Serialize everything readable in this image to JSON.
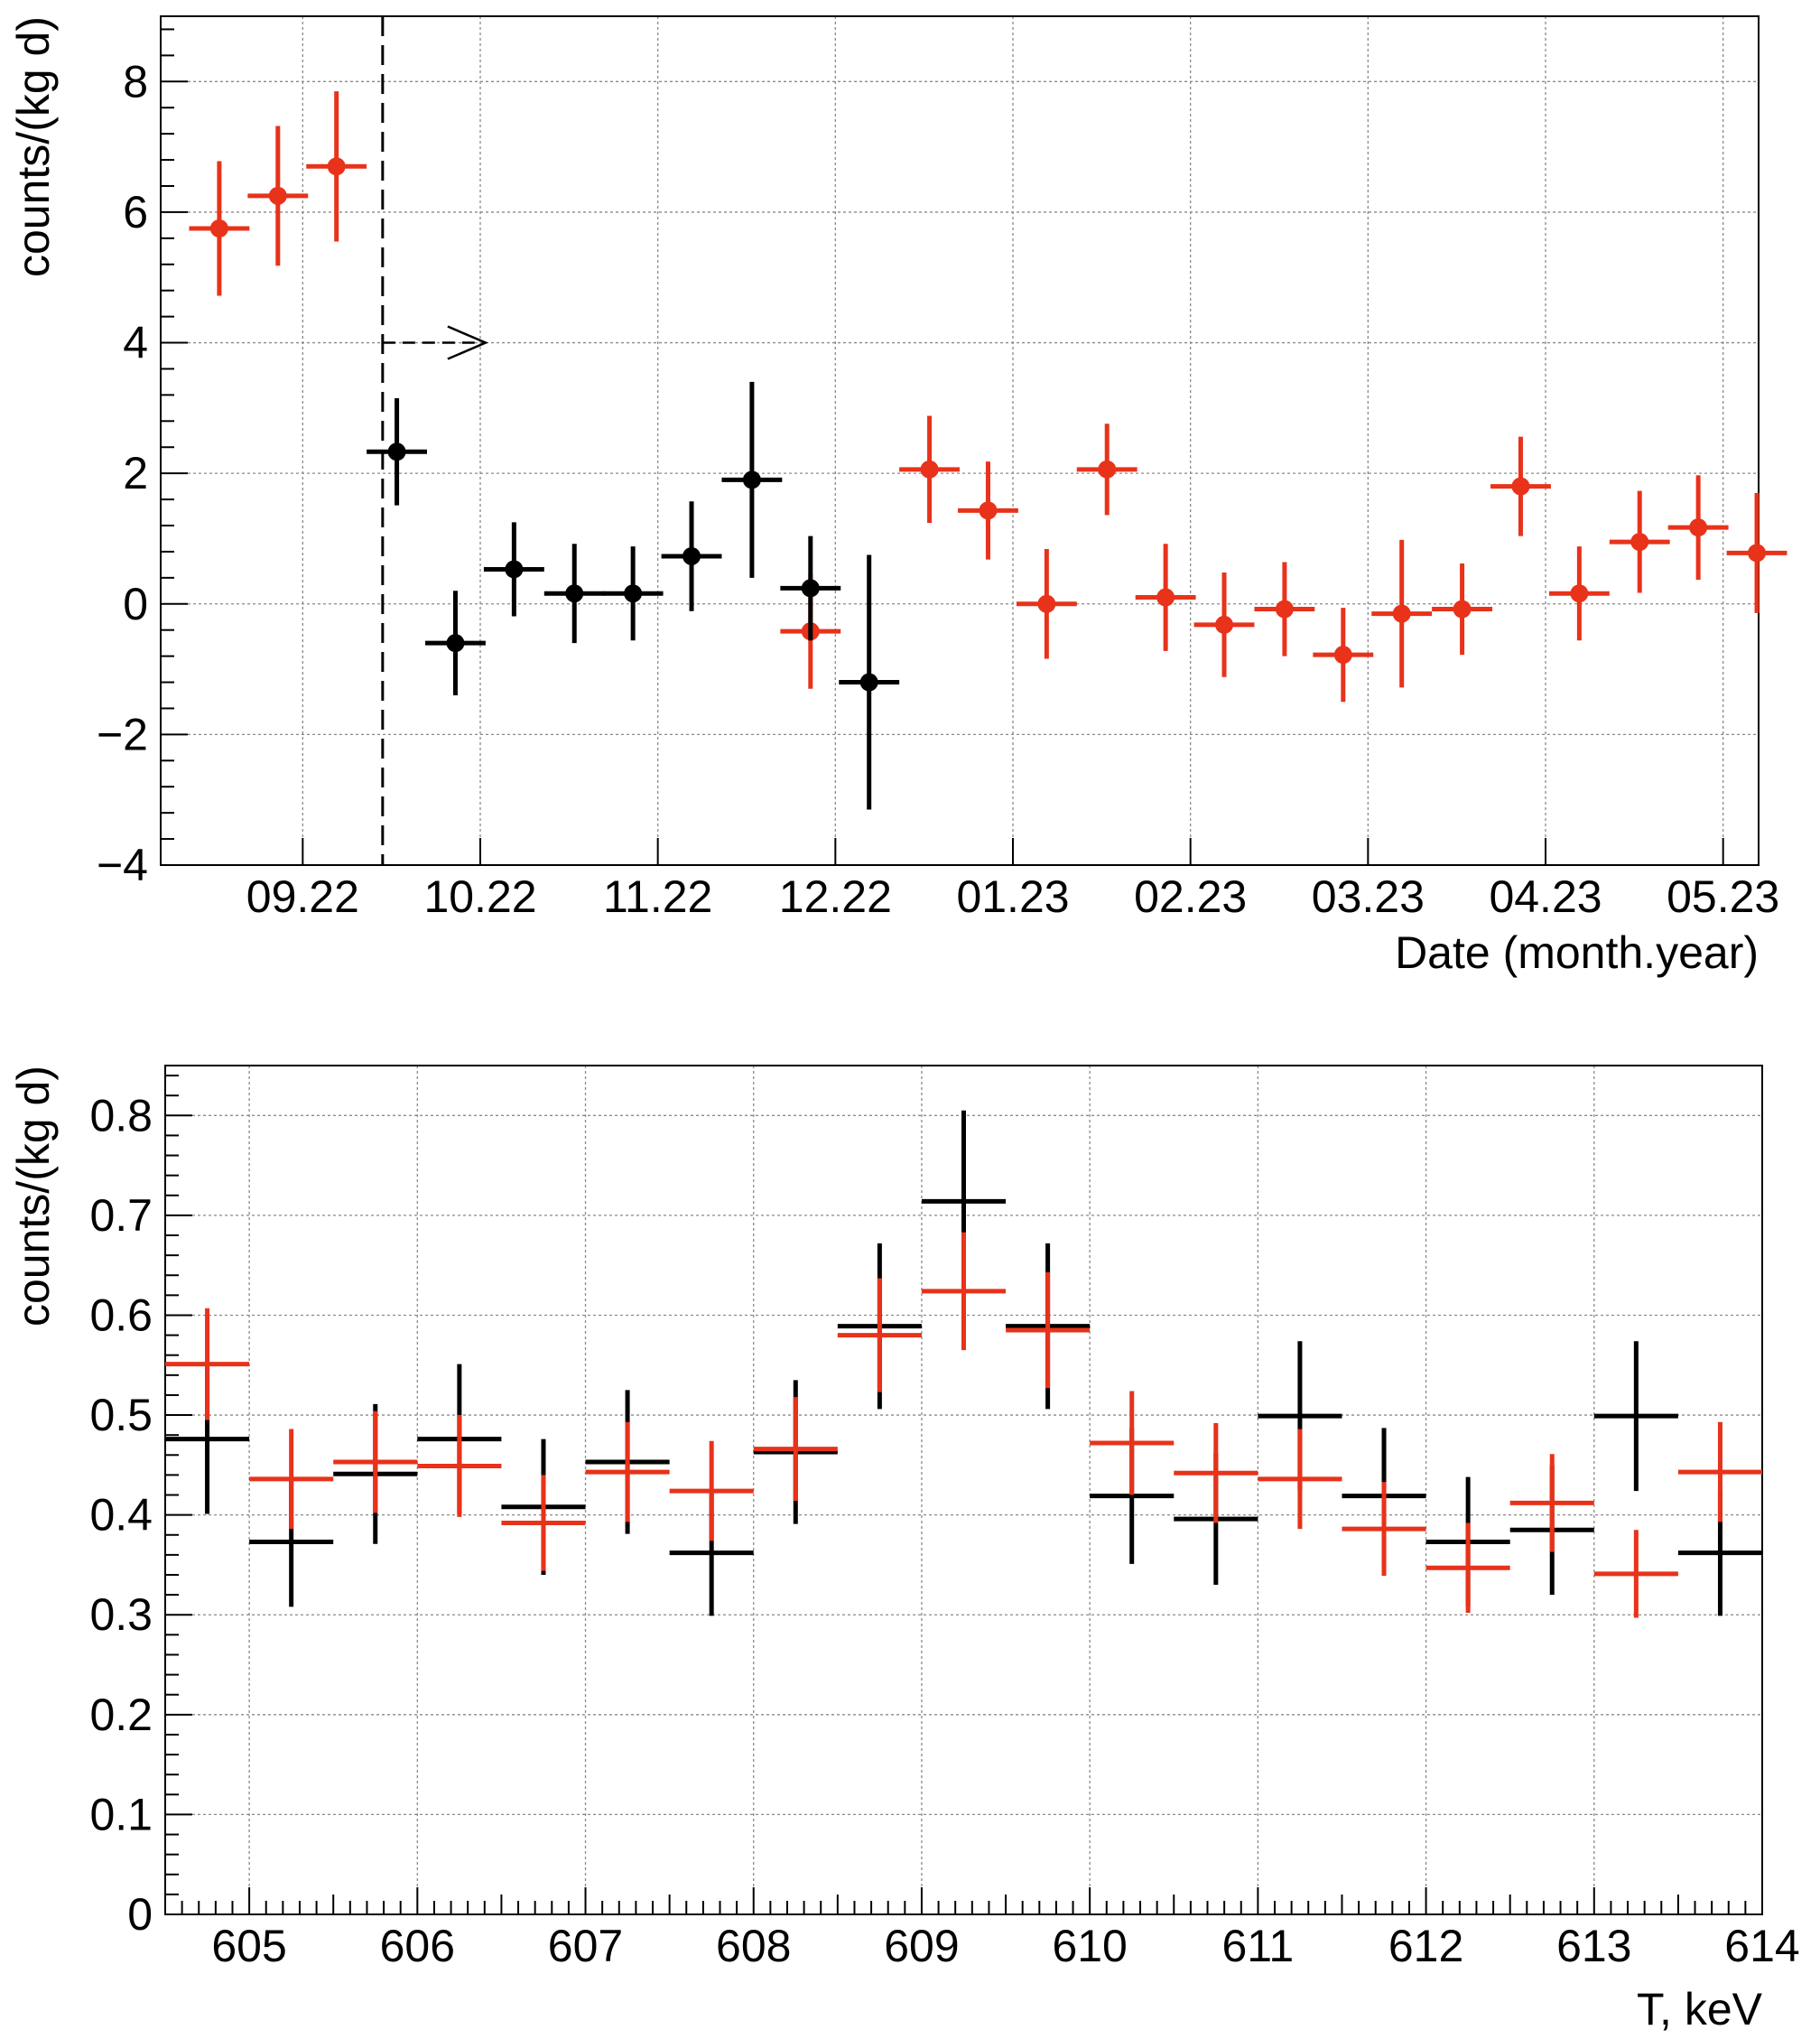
{
  "colors": {
    "red_series": "#e8321a",
    "black_series": "#000000",
    "grid": "#8a8a8a"
  },
  "chart_data": [
    {
      "type": "scatter",
      "subtype": "errorbar",
      "title": "",
      "xlabel": "Date (month.year)",
      "ylabel": "counts/(kg d)",
      "xlim": [
        0.2,
        9.2
      ],
      "ylim": [
        -4,
        9
      ],
      "xtick_labels": [
        {
          "x": 1,
          "label": "09.22"
        },
        {
          "x": 2,
          "label": "10.22"
        },
        {
          "x": 3,
          "label": "11.22"
        },
        {
          "x": 4,
          "label": "12.22"
        },
        {
          "x": 5,
          "label": "01.23"
        },
        {
          "x": 6,
          "label": "02.23"
        },
        {
          "x": 7,
          "label": "03.23"
        },
        {
          "x": 8,
          "label": "04.23"
        },
        {
          "x": 9,
          "label": "05.23"
        }
      ],
      "yticks": [
        -4,
        -2,
        0,
        2,
        4,
        6,
        8
      ],
      "grid": true,
      "marker": "circle",
      "xerr": 0.17,
      "vline": {
        "x": 1.45,
        "style": "dashed"
      },
      "arrow": {
        "x_from": 1.45,
        "x_to": 2.03,
        "y": 4,
        "style": "dashed",
        "direction": "right"
      },
      "series": [
        {
          "color": "#e8321a",
          "points": [
            {
              "x": 0.53,
              "y": 5.75,
              "err": 1.03
            },
            {
              "x": 0.86,
              "y": 6.25,
              "err": 1.07
            },
            {
              "x": 1.19,
              "y": 6.7,
              "err": 1.15
            },
            {
              "x": 3.86,
              "y": -0.42,
              "err": 0.88
            },
            {
              "x": 4.53,
              "y": 2.06,
              "err": 0.82
            },
            {
              "x": 4.86,
              "y": 1.43,
              "err": 0.75
            },
            {
              "x": 5.19,
              "y": 0.0,
              "err": 0.84
            },
            {
              "x": 5.53,
              "y": 2.06,
              "err": 0.7
            },
            {
              "x": 5.86,
              "y": 0.1,
              "err": 0.82
            },
            {
              "x": 6.19,
              "y": -0.32,
              "err": 0.8
            },
            {
              "x": 6.53,
              "y": -0.08,
              "err": 0.72
            },
            {
              "x": 6.86,
              "y": -0.78,
              "err": 0.72
            },
            {
              "x": 7.19,
              "y": -0.15,
              "err": 1.13
            },
            {
              "x": 7.53,
              "y": -0.08,
              "err": 0.7
            },
            {
              "x": 7.86,
              "y": 1.8,
              "err": 0.76
            },
            {
              "x": 8.19,
              "y": 0.16,
              "err": 0.72
            },
            {
              "x": 8.53,
              "y": 0.95,
              "err": 0.78
            },
            {
              "x": 8.86,
              "y": 1.17,
              "err": 0.8
            },
            {
              "x": 9.19,
              "y": 0.78,
              "err": 0.92
            }
          ]
        },
        {
          "color": "#000000",
          "points": [
            {
              "x": 1.53,
              "y": 2.33,
              "err": 0.82
            },
            {
              "x": 1.86,
              "y": -0.6,
              "err": 0.8
            },
            {
              "x": 2.19,
              "y": 0.53,
              "err": 0.72
            },
            {
              "x": 2.53,
              "y": 0.16,
              "err": 0.76
            },
            {
              "x": 2.86,
              "y": 0.16,
              "err": 0.72
            },
            {
              "x": 3.19,
              "y": 0.73,
              "err": 0.84
            },
            {
              "x": 3.53,
              "y": 1.9,
              "err": 1.5
            },
            {
              "x": 3.86,
              "y": 0.24,
              "err": 0.8
            },
            {
              "x": 4.19,
              "y": -1.2,
              "err": 1.95
            }
          ]
        }
      ]
    },
    {
      "type": "scatter",
      "subtype": "errorbar",
      "title": "",
      "xlabel": "T, keV",
      "ylabel": "counts/(kg d)",
      "xlim": [
        604.5,
        614
      ],
      "ylim": [
        0,
        0.85
      ],
      "xticks": [
        605,
        606,
        607,
        608,
        609,
        610,
        611,
        612,
        613,
        614
      ],
      "yticks": [
        0,
        0.1,
        0.2,
        0.3,
        0.4,
        0.5,
        0.6,
        0.7,
        0.8
      ],
      "grid": true,
      "marker": "none",
      "bin_width": 0.5,
      "series": [
        {
          "color": "#000000",
          "points": [
            {
              "x": 604.75,
              "y": 0.476,
              "err": 0.075
            },
            {
              "x": 605.25,
              "y": 0.373,
              "err": 0.065
            },
            {
              "x": 605.75,
              "y": 0.441,
              "err": 0.07
            },
            {
              "x": 606.25,
              "y": 0.476,
              "err": 0.075
            },
            {
              "x": 606.75,
              "y": 0.408,
              "err": 0.068
            },
            {
              "x": 607.25,
              "y": 0.453,
              "err": 0.072
            },
            {
              "x": 607.75,
              "y": 0.362,
              "err": 0.063
            },
            {
              "x": 608.25,
              "y": 0.463,
              "err": 0.072
            },
            {
              "x": 608.75,
              "y": 0.589,
              "err": 0.083
            },
            {
              "x": 609.25,
              "y": 0.714,
              "err": 0.091
            },
            {
              "x": 609.75,
              "y": 0.589,
              "err": 0.083
            },
            {
              "x": 610.25,
              "y": 0.419,
              "err": 0.068
            },
            {
              "x": 610.75,
              "y": 0.396,
              "err": 0.066
            },
            {
              "x": 611.25,
              "y": 0.499,
              "err": 0.075
            },
            {
              "x": 611.75,
              "y": 0.419,
              "err": 0.068
            },
            {
              "x": 612.25,
              "y": 0.373,
              "err": 0.065
            },
            {
              "x": 612.75,
              "y": 0.385,
              "err": 0.065
            },
            {
              "x": 613.25,
              "y": 0.499,
              "err": 0.075
            },
            {
              "x": 613.75,
              "y": 0.362,
              "err": 0.063
            }
          ]
        },
        {
          "color": "#e8321a",
          "points": [
            {
              "x": 604.75,
              "y": 0.551,
              "err": 0.056
            },
            {
              "x": 605.25,
              "y": 0.436,
              "err": 0.05
            },
            {
              "x": 605.75,
              "y": 0.453,
              "err": 0.051
            },
            {
              "x": 606.25,
              "y": 0.449,
              "err": 0.051
            },
            {
              "x": 606.75,
              "y": 0.392,
              "err": 0.048
            },
            {
              "x": 607.25,
              "y": 0.443,
              "err": 0.05
            },
            {
              "x": 607.75,
              "y": 0.424,
              "err": 0.05
            },
            {
              "x": 608.25,
              "y": 0.466,
              "err": 0.052
            },
            {
              "x": 608.75,
              "y": 0.58,
              "err": 0.057
            },
            {
              "x": 609.25,
              "y": 0.624,
              "err": 0.059
            },
            {
              "x": 609.75,
              "y": 0.585,
              "err": 0.058
            },
            {
              "x": 610.25,
              "y": 0.472,
              "err": 0.052
            },
            {
              "x": 610.75,
              "y": 0.442,
              "err": 0.05
            },
            {
              "x": 611.25,
              "y": 0.436,
              "err": 0.05
            },
            {
              "x": 611.75,
              "y": 0.386,
              "err": 0.047
            },
            {
              "x": 612.25,
              "y": 0.347,
              "err": 0.045
            },
            {
              "x": 612.75,
              "y": 0.412,
              "err": 0.049
            },
            {
              "x": 613.25,
              "y": 0.341,
              "err": 0.044
            },
            {
              "x": 613.75,
              "y": 0.443,
              "err": 0.05
            }
          ]
        }
      ]
    }
  ]
}
